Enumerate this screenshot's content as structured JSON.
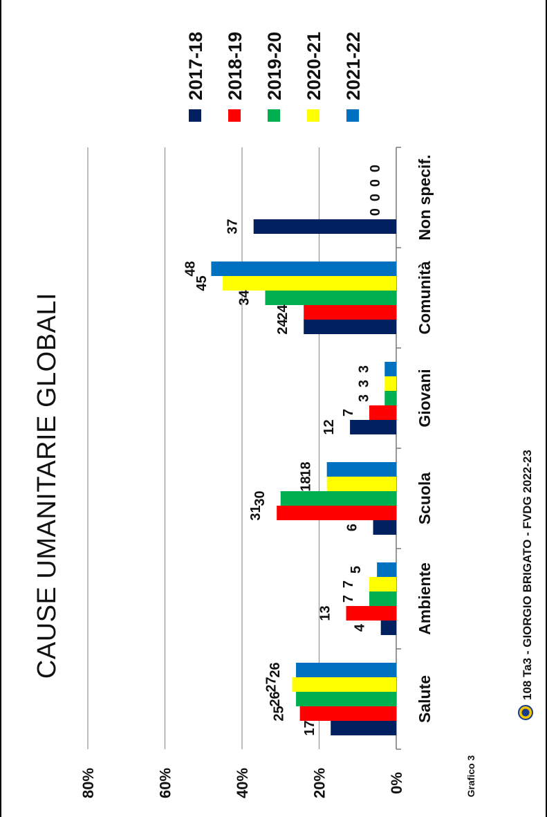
{
  "chart_data": {
    "type": "bar",
    "title": "CAUSE UMANITARIE GLOBALI",
    "categories": [
      "Salute",
      "Ambiente",
      "Scuola",
      "Giovani",
      "Comunità",
      "Non specif."
    ],
    "series": [
      {
        "name": "2017-18",
        "color": "#002060",
        "values": [
          17,
          4,
          6,
          12,
          24,
          37
        ]
      },
      {
        "name": "2018-19",
        "color": "#ff0000",
        "values": [
          25,
          13,
          31,
          7,
          24,
          0
        ]
      },
      {
        "name": "2019-20",
        "color": "#00b050",
        "values": [
          26,
          7,
          30,
          3,
          34,
          0
        ]
      },
      {
        "name": "2020-21",
        "color": "#ffff00",
        "values": [
          27,
          7,
          18,
          3,
          45,
          0
        ]
      },
      {
        "name": "2021-22",
        "color": "#0070c0",
        "values": [
          26,
          5,
          18,
          3,
          48,
          0
        ]
      }
    ],
    "ytick_labels": [
      "0%",
      "20%",
      "40%",
      "60%",
      "80%"
    ],
    "ylim": [
      0,
      80
    ],
    "grid": true,
    "legend_position": "top-right",
    "orientation": "rotated 90° counter-clockwise"
  },
  "footer": {
    "credit": "108 Ta3 - GIORGIO BRIGATO - FVDG 2022-23",
    "chart_number": "Grafico 3",
    "logo_icon": "lions-club-logo-icon"
  }
}
